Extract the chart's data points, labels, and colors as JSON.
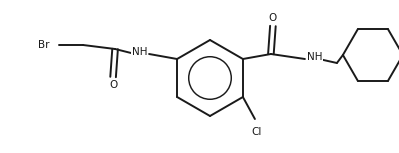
{
  "bg_color": "#ffffff",
  "line_color": "#1a1a1a",
  "line_width": 1.4,
  "font_size": 7.5,
  "fig_width": 3.99,
  "fig_height": 1.53,
  "dpi": 100,
  "xlim": [
    0,
    399
  ],
  "ylim": [
    0,
    153
  ]
}
